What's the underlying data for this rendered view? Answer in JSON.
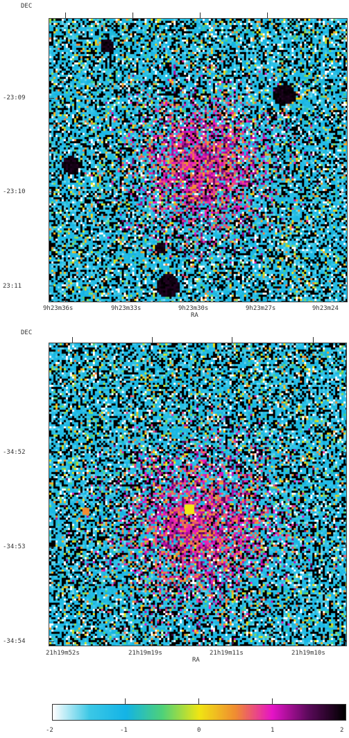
{
  "panels": [
    {
      "dec_axis_label": "DEC",
      "ra_axis_label": "RA",
      "dec_ticks": [
        "-23:09",
        "-23:10",
        "23:11"
      ],
      "ra_ticks": [
        "9h23m36s",
        "9h23m33s",
        "9h23m30s",
        "9h23m27s",
        "9h23m24"
      ]
    },
    {
      "dec_axis_label": "DEC",
      "ra_axis_label": "RA",
      "dec_ticks": [
        "-34:52",
        "-34:53",
        "-34:54"
      ],
      "ra_ticks": [
        "21h19m52s",
        "21h19m19s",
        "21h19m11s",
        "21h19m10s"
      ]
    }
  ],
  "colorbar": {
    "tick_labels": [
      "-2",
      "-1",
      "0",
      "1",
      "2"
    ],
    "colors": [
      "#ffffff",
      "#3cc8e6",
      "#14b4e6",
      "#50d278",
      "#f0e614",
      "#f08c32",
      "#e614c8",
      "#5a0a5a",
      "#000000"
    ]
  }
}
